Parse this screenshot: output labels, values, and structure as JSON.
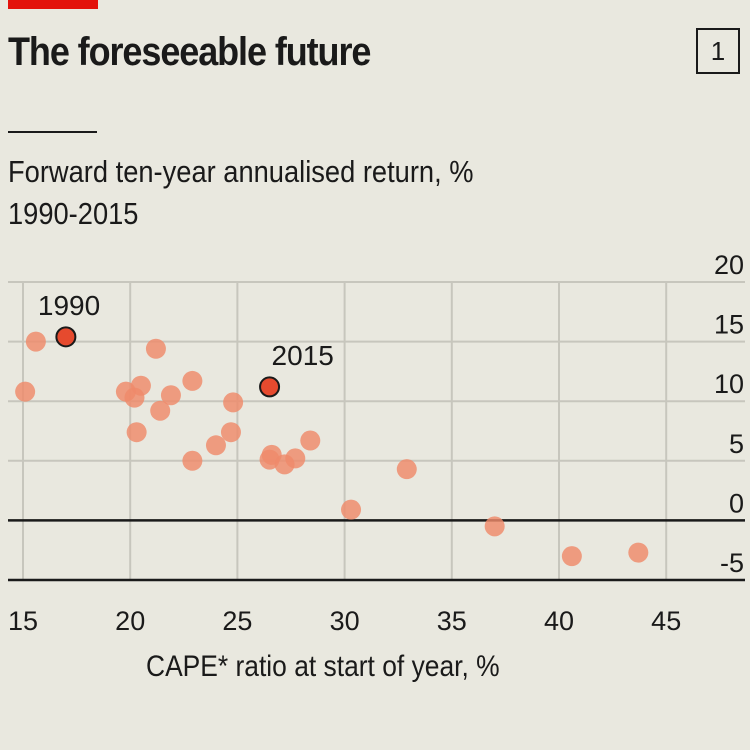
{
  "header": {
    "title": "The foreseeable future",
    "chart_number": "1",
    "subtitle": "Forward ten-year annualised return, %",
    "period": "1990-2015",
    "brand_color": "#e3120b"
  },
  "colors": {
    "point": "#ef8a6a",
    "highlight": "#e64a2e",
    "grid": "#c7c6bd",
    "axis": "#1a1a1a"
  },
  "chart_data": {
    "type": "scatter",
    "title": "The foreseeable future",
    "subtitle": "Forward ten-year annualised return, % 1990-2015",
    "xlabel": "CAPE* ratio at start of year, %",
    "ylabel": "Forward ten-year annualised return, %",
    "xlim": [
      14.3,
      48.3
    ],
    "ylim": [
      -5,
      20
    ],
    "xticks": [
      15,
      20,
      25,
      30,
      35,
      40,
      45
    ],
    "yticks": [
      20,
      15,
      10,
      5,
      0,
      -5
    ],
    "grid": true,
    "y_axis_side": "right",
    "points": [
      {
        "x": 15.6,
        "y": 15.0
      },
      {
        "x": 17.0,
        "y": 15.4,
        "label": "1990",
        "highlight": true
      },
      {
        "x": 15.1,
        "y": 10.8
      },
      {
        "x": 21.2,
        "y": 14.4
      },
      {
        "x": 19.8,
        "y": 10.8
      },
      {
        "x": 20.5,
        "y": 11.3
      },
      {
        "x": 20.2,
        "y": 10.3
      },
      {
        "x": 20.3,
        "y": 7.4
      },
      {
        "x": 21.4,
        "y": 9.2
      },
      {
        "x": 21.9,
        "y": 10.5
      },
      {
        "x": 22.9,
        "y": 11.7
      },
      {
        "x": 22.9,
        "y": 5.0
      },
      {
        "x": 24.0,
        "y": 6.3
      },
      {
        "x": 24.7,
        "y": 7.4
      },
      {
        "x": 24.8,
        "y": 9.9
      },
      {
        "x": 26.5,
        "y": 5.1
      },
      {
        "x": 26.6,
        "y": 5.5
      },
      {
        "x": 27.2,
        "y": 4.7
      },
      {
        "x": 27.7,
        "y": 5.2
      },
      {
        "x": 28.4,
        "y": 6.7
      },
      {
        "x": 30.3,
        "y": 0.9
      },
      {
        "x": 32.9,
        "y": 4.3
      },
      {
        "x": 37.0,
        "y": -0.5
      },
      {
        "x": 40.6,
        "y": -3.0
      },
      {
        "x": 43.7,
        "y": -2.7
      },
      {
        "x": 26.5,
        "y": 11.2,
        "label": "2015",
        "highlight": true
      }
    ]
  }
}
